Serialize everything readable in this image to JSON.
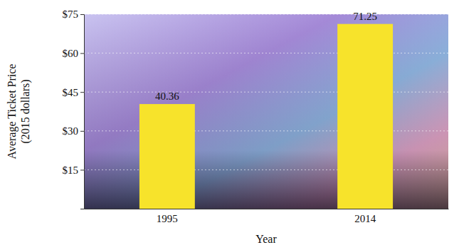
{
  "chart_data": {
    "type": "bar",
    "categories": [
      "1995",
      "2014"
    ],
    "values": [
      40.36,
      71.25
    ],
    "color": "#f7e32b",
    "x_label": "Year",
    "y_label": "Average Ticket Price (2015 dollars)",
    "ylim": [
      0,
      75
    ],
    "yticks": [
      {
        "value": 15,
        "label": "$15"
      },
      {
        "value": 30,
        "label": "$30"
      },
      {
        "value": 45,
        "label": "$45"
      },
      {
        "value": 60,
        "label": "$60"
      },
      {
        "value": 75,
        "label": "$75"
      }
    ],
    "grid": true,
    "data_labels": true
  }
}
